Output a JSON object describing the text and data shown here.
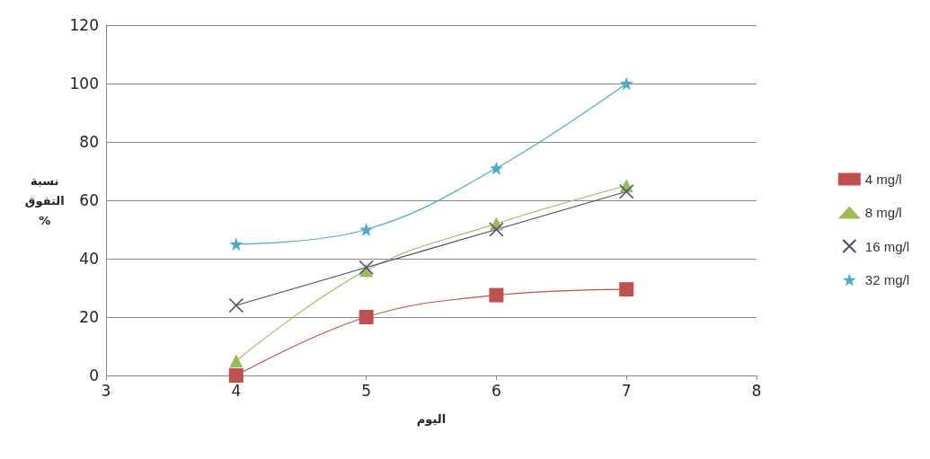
{
  "chart_data": {
    "type": "line",
    "xlabel": "اليوم",
    "ylabel": "نسبة التفوق %",
    "x": [
      4,
      5,
      6,
      7
    ],
    "series": [
      {
        "name": "4 mg/l",
        "color": "#c0504d",
        "marker": "square",
        "values": [
          0,
          20,
          27.5,
          29.5
        ]
      },
      {
        "name": "8 mg/l",
        "color": "#9bbb59",
        "marker": "triangle",
        "values": [
          5,
          36,
          52,
          65
        ]
      },
      {
        "name": "16 mg/l",
        "color": "#4a4a6a",
        "marker": "cross",
        "values": [
          24,
          37,
          50,
          63
        ]
      },
      {
        "name": "32 mg/l",
        "color": "#4bacc6",
        "marker": "star",
        "values": [
          45,
          50,
          71,
          100
        ]
      }
    ],
    "xlim": [
      3,
      8
    ],
    "xticks": [
      3,
      4,
      5,
      6,
      7,
      8
    ],
    "ylim": [
      0,
      120
    ],
    "yticks": [
      0,
      20,
      40,
      60,
      80,
      100,
      120
    ],
    "grid": "y",
    "legend": "right"
  }
}
